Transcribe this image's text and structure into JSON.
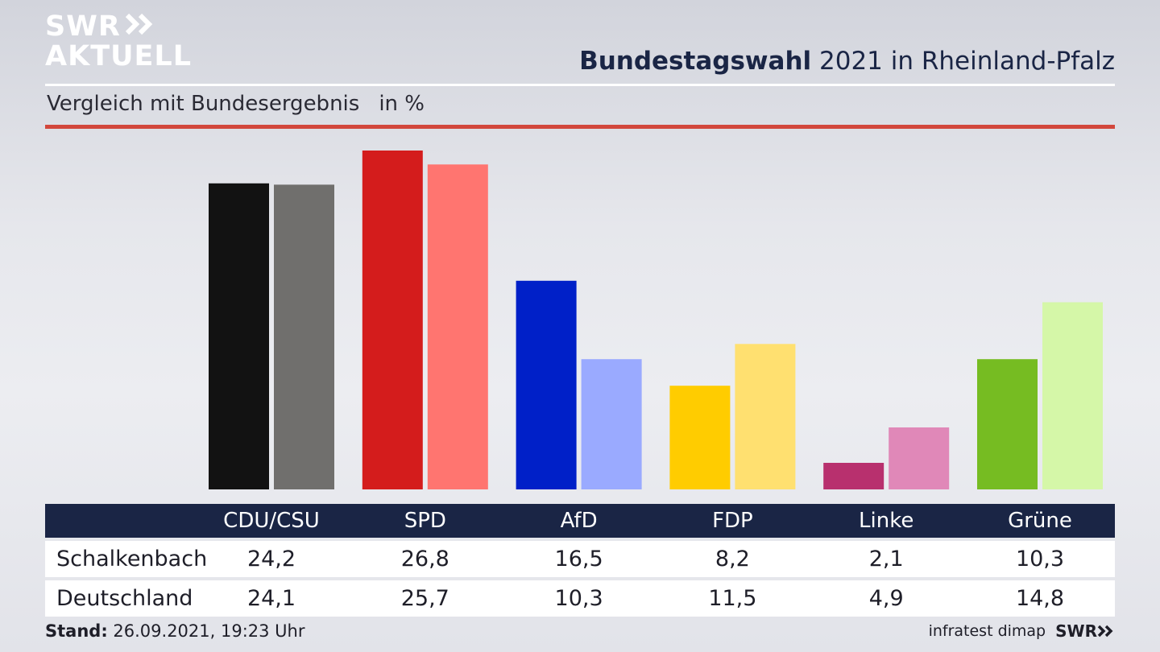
{
  "header": {
    "logo_line1": "SWR",
    "logo_line2": "AKTUELL",
    "title_bold": "Bundestagswahl",
    "title_rest": " 2021 in Rheinland-Pfalz",
    "subtitle": "Vergleich mit Bundesergebnis",
    "unit": "in %"
  },
  "chart_data": {
    "type": "bar",
    "categories": [
      "CDU/CSU",
      "SPD",
      "AfD",
      "FDP",
      "Linke",
      "Grüne"
    ],
    "series": [
      {
        "name": "Schalkenbach",
        "values": [
          24.2,
          26.8,
          16.5,
          8.2,
          2.1,
          10.3
        ],
        "colors": [
          "#121212",
          "#d41c1c",
          "#0020c8",
          "#ffcc00",
          "#b8306e",
          "#76bc22"
        ]
      },
      {
        "name": "Deutschland",
        "values": [
          24.1,
          25.7,
          10.3,
          11.5,
          4.9,
          14.8
        ],
        "colors": [
          "#706f6d",
          "#ff7570",
          "#9aaaff",
          "#ffe070",
          "#e088b8",
          "#d5f7a8"
        ]
      }
    ],
    "value_labels": [
      [
        "24,2",
        "26,8",
        "16,5",
        "8,2",
        "2,1",
        "10,3"
      ],
      [
        "24,1",
        "25,7",
        "10,3",
        "11,5",
        "4,9",
        "14,8"
      ]
    ],
    "ylim": [
      0,
      26.8
    ],
    "grid": false,
    "legend": "table-below"
  },
  "footer": {
    "stand_label": "Stand:",
    "stand_value": " 26.09.2021, 19:23 Uhr",
    "source": "infratest dimap",
    "brand": "SWR"
  },
  "colors": {
    "navy": "#1a2545",
    "accent_red": "#d2473c"
  }
}
